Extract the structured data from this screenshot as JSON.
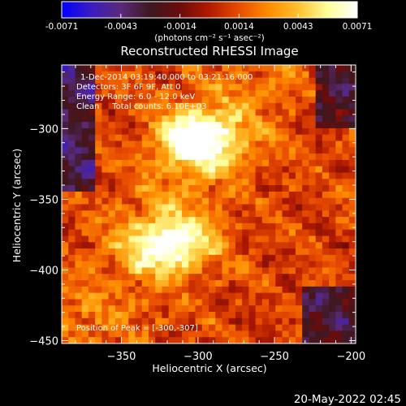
{
  "colorbar": {
    "ticks": [
      "-0.0071",
      "-0.0043",
      "-0.0014",
      "0.0014",
      "0.0043",
      "0.0071"
    ],
    "unit_label": "(photons cm⁻² s⁻¹ asec⁻²)",
    "colormap": [
      "#0000ff",
      "#3a1cc0",
      "#5a2a7a",
      "#3d1820",
      "#6b0c0c",
      "#b01a00",
      "#e84c00",
      "#ff8c00",
      "#ffc030",
      "#ffff99",
      "#ffffff"
    ]
  },
  "chart_data": {
    "type": "heatmap",
    "title": "Reconstructed RHESSI Image",
    "xlabel": "Heliocentric X (arcsec)",
    "ylabel": "Heliocentric Y (arcsec)",
    "xlim": [
      -389,
      -197
    ],
    "ylim": [
      -452,
      -255
    ],
    "x_ticks": [
      -350,
      -300,
      -250,
      -200
    ],
    "y_ticks": [
      -300,
      -350,
      -400,
      -450
    ],
    "color_range": [
      -0.0071,
      0.0071
    ],
    "sources": [
      {
        "x": -300,
        "y": -307,
        "peak": 0.0071
      },
      {
        "x": -316,
        "y": -382,
        "peak": 0.0062
      }
    ],
    "annotations": [
      "1-Dec-2014 03:19:40.000 to 03:21:16.000",
      "Detectors: 3F 6F 9F, Att 0",
      "Energy Range: 6.0 - 12.0 keV",
      "Clean     Total counts: 6.10E+03"
    ],
    "peak_label": "Position of Peak = [-300,-307]"
  },
  "footer": {
    "date": "20-May-2022 02:45"
  }
}
